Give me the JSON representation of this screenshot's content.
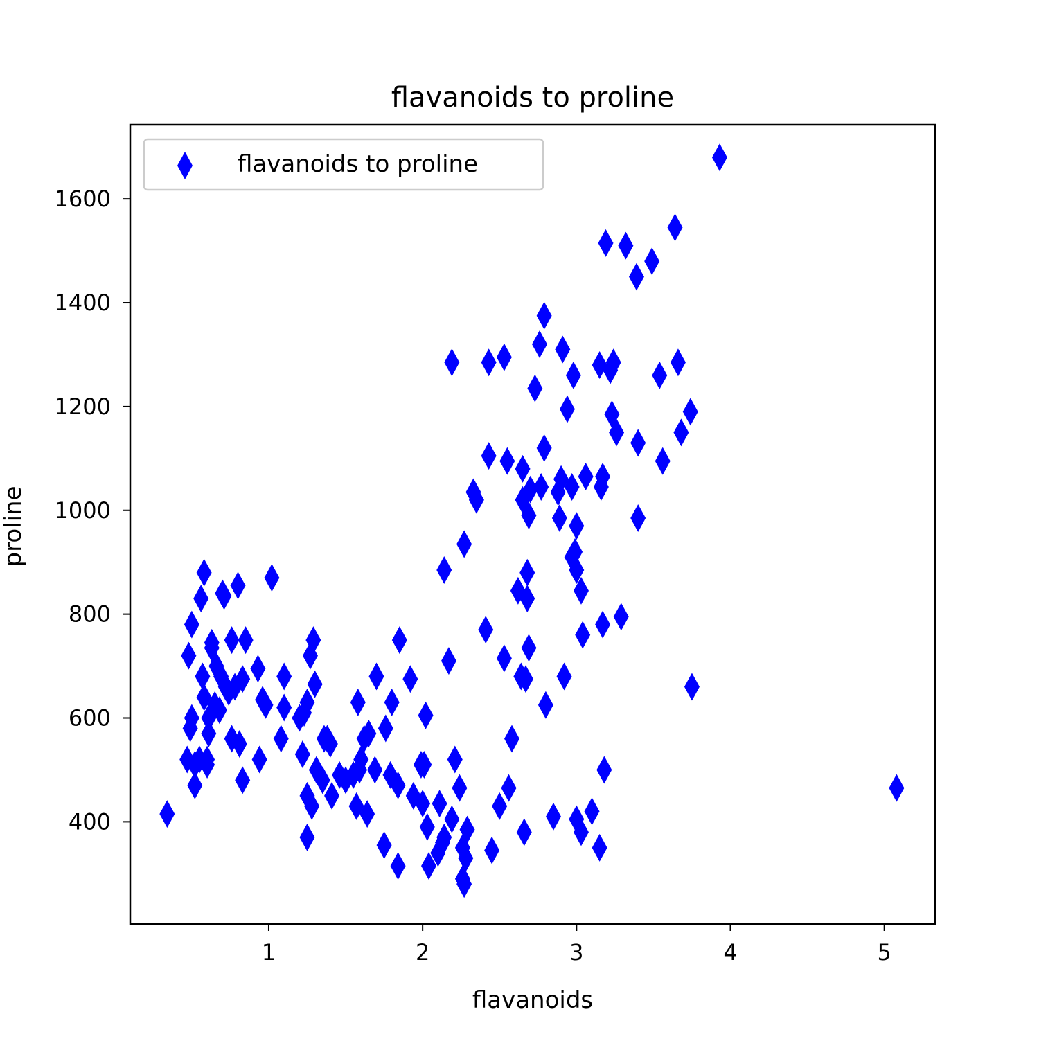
{
  "colors": {
    "marker": "#0000ff",
    "axis": "#000000",
    "background": "#ffffff",
    "legend_border": "#cccccc"
  },
  "chart_data": {
    "type": "scatter",
    "title": "flavanoids to proline",
    "xlabel": "flavanoids",
    "ylabel": "proline",
    "xlim": [
      0.1,
      5.33
    ],
    "ylim": [
      203,
      1743
    ],
    "xticks": [
      1,
      2,
      3,
      4,
      5
    ],
    "yticks": [
      400,
      600,
      800,
      1000,
      1200,
      1400,
      1600
    ],
    "marker": "thin_diamond",
    "grid": false,
    "legend": {
      "location": "upper-left",
      "entries": [
        "flavanoids to proline"
      ]
    },
    "series": [
      {
        "name": "flavanoids to proline",
        "points": [
          [
            0.34,
            415
          ],
          [
            0.47,
            520
          ],
          [
            0.48,
            720
          ],
          [
            0.49,
            580
          ],
          [
            0.5,
            780
          ],
          [
            0.5,
            600
          ],
          [
            0.52,
            510
          ],
          [
            0.52,
            470
          ],
          [
            0.55,
            520
          ],
          [
            0.56,
            830
          ],
          [
            0.57,
            680
          ],
          [
            0.58,
            880
          ],
          [
            0.58,
            640
          ],
          [
            0.6,
            520
          ],
          [
            0.6,
            510
          ],
          [
            0.61,
            570
          ],
          [
            0.61,
            600
          ],
          [
            0.63,
            745
          ],
          [
            0.63,
            735
          ],
          [
            0.65,
            625
          ],
          [
            0.66,
            700
          ],
          [
            0.68,
            615
          ],
          [
            0.69,
            680
          ],
          [
            0.7,
            840
          ],
          [
            0.71,
            835
          ],
          [
            0.72,
            660
          ],
          [
            0.74,
            650
          ],
          [
            0.76,
            750
          ],
          [
            0.76,
            560
          ],
          [
            0.78,
            660
          ],
          [
            0.8,
            855
          ],
          [
            0.81,
            550
          ],
          [
            0.83,
            480
          ],
          [
            0.83,
            675
          ],
          [
            0.85,
            750
          ],
          [
            0.93,
            695
          ],
          [
            0.94,
            520
          ],
          [
            0.96,
            635
          ],
          [
            0.98,
            625
          ],
          [
            1.02,
            870
          ],
          [
            1.08,
            560
          ],
          [
            1.1,
            680
          ],
          [
            1.1,
            620
          ],
          [
            1.2,
            600
          ],
          [
            1.22,
            530
          ],
          [
            1.23,
            610
          ],
          [
            1.25,
            630
          ],
          [
            1.25,
            450
          ],
          [
            1.25,
            370
          ],
          [
            1.27,
            720
          ],
          [
            1.28,
            430
          ],
          [
            1.29,
            750
          ],
          [
            1.3,
            665
          ],
          [
            1.31,
            500
          ],
          [
            1.35,
            480
          ],
          [
            1.36,
            560
          ],
          [
            1.38,
            560
          ],
          [
            1.4,
            550
          ],
          [
            1.41,
            450
          ],
          [
            1.46,
            490
          ],
          [
            1.5,
            480
          ],
          [
            1.55,
            490
          ],
          [
            1.57,
            430
          ],
          [
            1.58,
            630
          ],
          [
            1.59,
            500
          ],
          [
            1.6,
            520
          ],
          [
            1.62,
            560
          ],
          [
            1.64,
            415
          ],
          [
            1.65,
            570
          ],
          [
            1.69,
            500
          ],
          [
            1.7,
            680
          ],
          [
            1.75,
            355
          ],
          [
            1.76,
            580
          ],
          [
            1.79,
            490
          ],
          [
            1.8,
            630
          ],
          [
            1.84,
            315
          ],
          [
            1.84,
            470
          ],
          [
            1.85,
            750
          ],
          [
            1.92,
            675
          ],
          [
            1.94,
            450
          ],
          [
            1.99,
            510
          ],
          [
            2.0,
            435
          ],
          [
            2.01,
            510
          ],
          [
            2.02,
            605
          ],
          [
            2.03,
            390
          ],
          [
            2.04,
            315
          ],
          [
            2.1,
            340
          ],
          [
            2.11,
            435
          ],
          [
            2.13,
            360
          ],
          [
            2.14,
            370
          ],
          [
            2.14,
            885
          ],
          [
            2.17,
            710
          ],
          [
            2.19,
            1285
          ],
          [
            2.19,
            405
          ],
          [
            2.21,
            520
          ],
          [
            2.24,
            465
          ],
          [
            2.26,
            290
          ],
          [
            2.26,
            350
          ],
          [
            2.27,
            935
          ],
          [
            2.27,
            280
          ],
          [
            2.28,
            330
          ],
          [
            2.29,
            385
          ],
          [
            2.33,
            1035
          ],
          [
            2.35,
            1020
          ],
          [
            2.41,
            770
          ],
          [
            2.43,
            1285
          ],
          [
            2.43,
            1105
          ],
          [
            2.45,
            345
          ],
          [
            2.5,
            430
          ],
          [
            2.53,
            715
          ],
          [
            2.53,
            1295
          ],
          [
            2.55,
            1095
          ],
          [
            2.56,
            465
          ],
          [
            2.58,
            560
          ],
          [
            2.62,
            845
          ],
          [
            2.64,
            680
          ],
          [
            2.65,
            1020
          ],
          [
            2.65,
            1080
          ],
          [
            2.66,
            380
          ],
          [
            2.67,
            675
          ],
          [
            2.68,
            830
          ],
          [
            2.68,
            880
          ],
          [
            2.69,
            735
          ],
          [
            2.69,
            990
          ],
          [
            2.7,
            1040
          ],
          [
            2.73,
            1235
          ],
          [
            2.76,
            1320
          ],
          [
            2.77,
            1045
          ],
          [
            2.79,
            1120
          ],
          [
            2.79,
            1375
          ],
          [
            2.8,
            625
          ],
          [
            2.85,
            410
          ],
          [
            2.88,
            1035
          ],
          [
            2.89,
            985
          ],
          [
            2.9,
            1060
          ],
          [
            2.91,
            1310
          ],
          [
            2.92,
            680
          ],
          [
            2.94,
            1195
          ],
          [
            2.97,
            910
          ],
          [
            2.97,
            1045
          ],
          [
            2.98,
            1260
          ],
          [
            2.99,
            920
          ],
          [
            3.0,
            970
          ],
          [
            3.0,
            885
          ],
          [
            3.0,
            405
          ],
          [
            3.03,
            380
          ],
          [
            3.03,
            845
          ],
          [
            3.04,
            760
          ],
          [
            3.06,
            1065
          ],
          [
            3.1,
            420
          ],
          [
            3.15,
            1280
          ],
          [
            3.15,
            350
          ],
          [
            3.16,
            1045
          ],
          [
            3.17,
            780
          ],
          [
            3.17,
            1065
          ],
          [
            3.18,
            500
          ],
          [
            3.19,
            1515
          ],
          [
            3.22,
            1270
          ],
          [
            3.23,
            1185
          ],
          [
            3.24,
            1285
          ],
          [
            3.26,
            1150
          ],
          [
            3.29,
            795
          ],
          [
            3.32,
            1510
          ],
          [
            3.39,
            1450
          ],
          [
            3.4,
            985
          ],
          [
            3.4,
            1130
          ],
          [
            3.49,
            1480
          ],
          [
            3.54,
            1260
          ],
          [
            3.56,
            1095
          ],
          [
            3.64,
            1545
          ],
          [
            3.66,
            1285
          ],
          [
            3.68,
            1150
          ],
          [
            3.74,
            1190
          ],
          [
            3.75,
            660
          ],
          [
            3.93,
            1680
          ],
          [
            5.08,
            465
          ]
        ]
      }
    ]
  }
}
